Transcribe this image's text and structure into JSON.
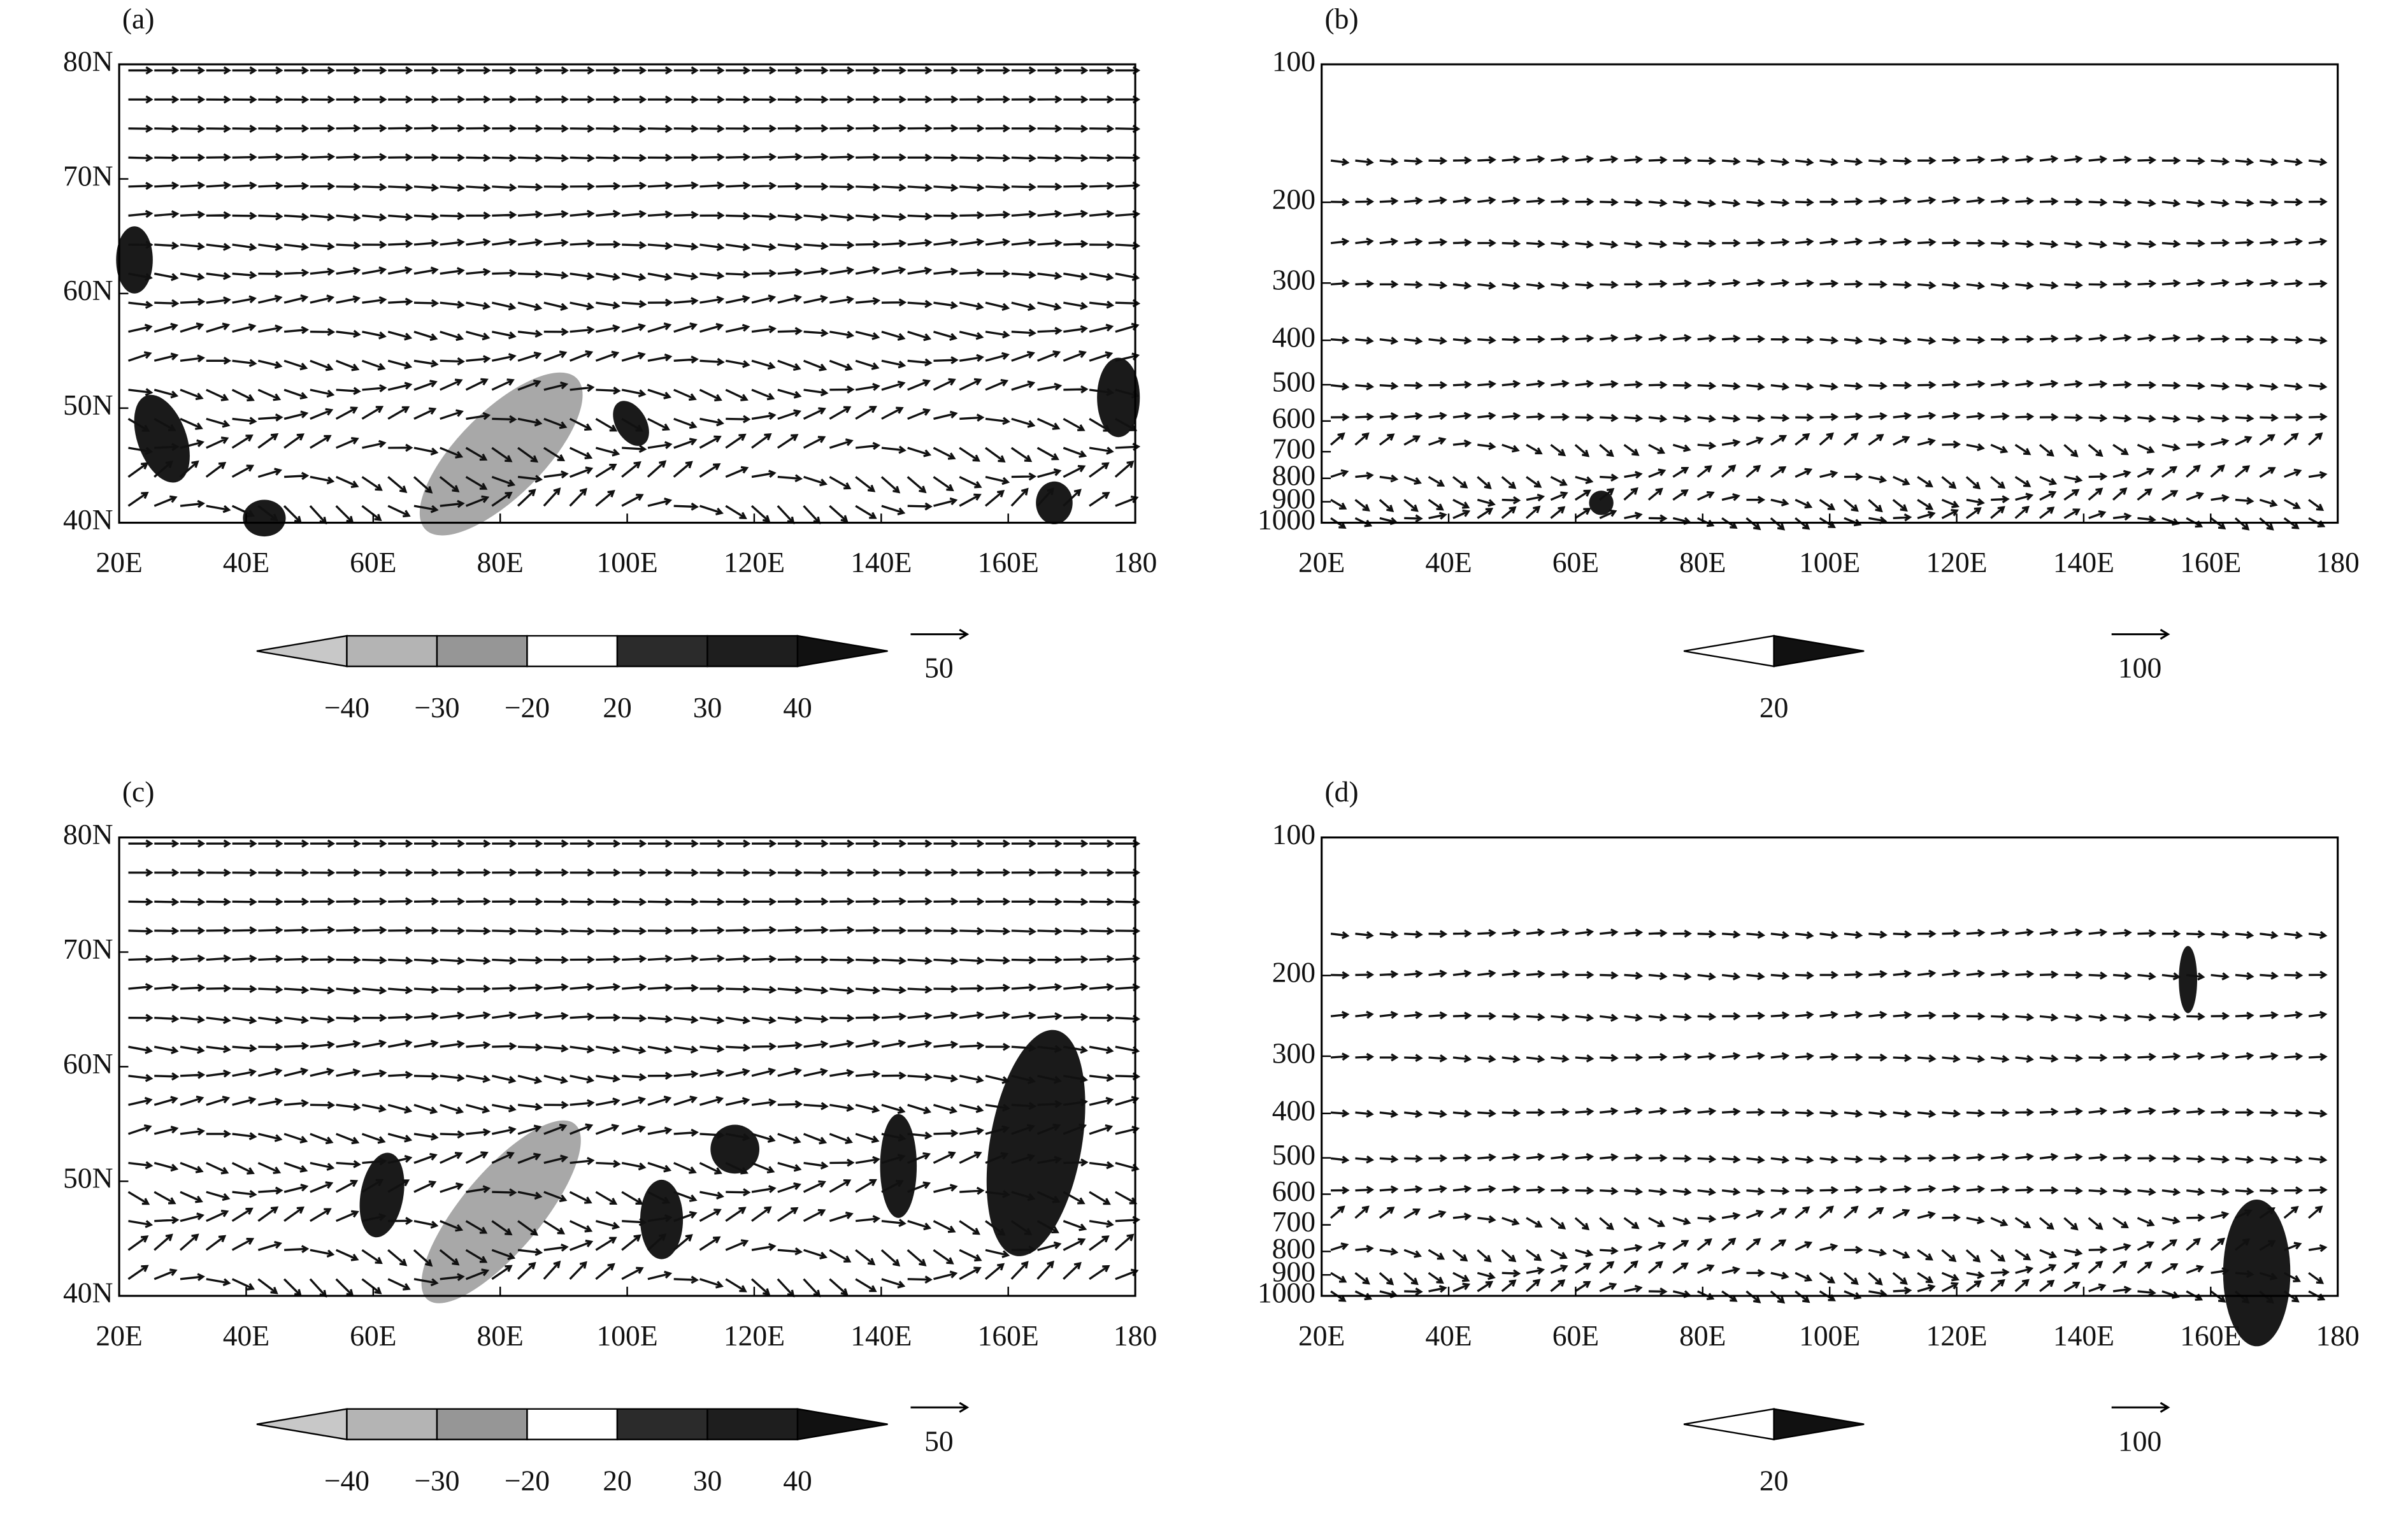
{
  "chart_data": [
    {
      "type": "vector-map",
      "panel_label": "(a)",
      "xlim": [
        20,
        180
      ],
      "xticks": [
        {
          "value": 20,
          "label": "20E"
        },
        {
          "value": 40,
          "label": "40E"
        },
        {
          "value": 60,
          "label": "60E"
        },
        {
          "value": 80,
          "label": "80E"
        },
        {
          "value": 100,
          "label": "100E"
        },
        {
          "value": 120,
          "label": "120E"
        },
        {
          "value": 140,
          "label": "140E"
        },
        {
          "value": 160,
          "label": "160E"
        },
        180
      ],
      "ylim": [
        40,
        80
      ],
      "yticks": [
        {
          "value": 40,
          "label": "40N"
        },
        {
          "value": 50,
          "label": "50N"
        },
        {
          "value": 60,
          "label": "60N"
        },
        {
          "value": 70,
          "label": "70N"
        },
        {
          "value": 80,
          "label": "80N"
        }
      ],
      "colorbar": {
        "levels": [
          {
            "value": -40,
            "label": "−40"
          },
          {
            "value": -30,
            "label": "−30"
          },
          {
            "value": -20,
            "label": "−20"
          },
          20,
          30,
          40
        ],
        "colors": [
          "#c8c8c8",
          "#b4b4b4",
          "#969696",
          "#ffffff",
          "#2b2b2b",
          "#1e1e1e",
          "#111111"
        ]
      },
      "reference_vector": 50
    },
    {
      "type": "vector-section",
      "panel_label": "(b)",
      "xlim": [
        20,
        180
      ],
      "xticks": [
        {
          "value": 20,
          "label": "20E"
        },
        {
          "value": 40,
          "label": "40E"
        },
        {
          "value": 60,
          "label": "60E"
        },
        {
          "value": 80,
          "label": "80E"
        },
        {
          "value": 100,
          "label": "100E"
        },
        {
          "value": 120,
          "label": "120E"
        },
        {
          "value": 140,
          "label": "140E"
        },
        {
          "value": 160,
          "label": "160E"
        },
        180
      ],
      "ylim": [
        1000,
        100
      ],
      "log_scale": true,
      "yticks": [
        100,
        200,
        300,
        400,
        500,
        600,
        700,
        800,
        900,
        1000
      ],
      "colorbar": {
        "levels": [
          20
        ],
        "colors": [
          "#ffffff",
          "#111111"
        ]
      },
      "reference_vector": 100
    },
    {
      "type": "vector-map",
      "panel_label": "(c)",
      "xlim": [
        20,
        180
      ],
      "xticks": [
        {
          "value": 20,
          "label": "20E"
        },
        {
          "value": 40,
          "label": "40E"
        },
        {
          "value": 60,
          "label": "60E"
        },
        {
          "value": 80,
          "label": "80E"
        },
        {
          "value": 100,
          "label": "100E"
        },
        {
          "value": 120,
          "label": "120E"
        },
        {
          "value": 140,
          "label": "140E"
        },
        {
          "value": 160,
          "label": "160E"
        },
        180
      ],
      "ylim": [
        40,
        80
      ],
      "yticks": [
        {
          "value": 40,
          "label": "40N"
        },
        {
          "value": 50,
          "label": "50N"
        },
        {
          "value": 60,
          "label": "60N"
        },
        {
          "value": 70,
          "label": "70N"
        },
        {
          "value": 80,
          "label": "80N"
        }
      ],
      "colorbar": {
        "levels": [
          {
            "value": -40,
            "label": "−40"
          },
          {
            "value": -30,
            "label": "−30"
          },
          {
            "value": -20,
            "label": "−20"
          },
          20,
          30,
          40
        ],
        "colors": [
          "#c8c8c8",
          "#b4b4b4",
          "#969696",
          "#ffffff",
          "#2b2b2b",
          "#1e1e1e",
          "#111111"
        ]
      },
      "reference_vector": 50
    },
    {
      "type": "vector-section",
      "panel_label": "(d)",
      "xlim": [
        20,
        180
      ],
      "xticks": [
        {
          "value": 20,
          "label": "20E"
        },
        {
          "value": 40,
          "label": "40E"
        },
        {
          "value": 60,
          "label": "60E"
        },
        {
          "value": 80,
          "label": "80E"
        },
        {
          "value": 100,
          "label": "100E"
        },
        {
          "value": 120,
          "label": "120E"
        },
        {
          "value": 140,
          "label": "140E"
        },
        {
          "value": 160,
          "label": "160E"
        },
        180
      ],
      "ylim": [
        1000,
        100
      ],
      "log_scale": true,
      "yticks": [
        100,
        200,
        300,
        400,
        500,
        600,
        700,
        800,
        900,
        1000
      ],
      "colorbar": {
        "levels": [
          20
        ],
        "colors": [
          "#ffffff",
          "#111111"
        ]
      },
      "reference_vector": 100
    }
  ]
}
